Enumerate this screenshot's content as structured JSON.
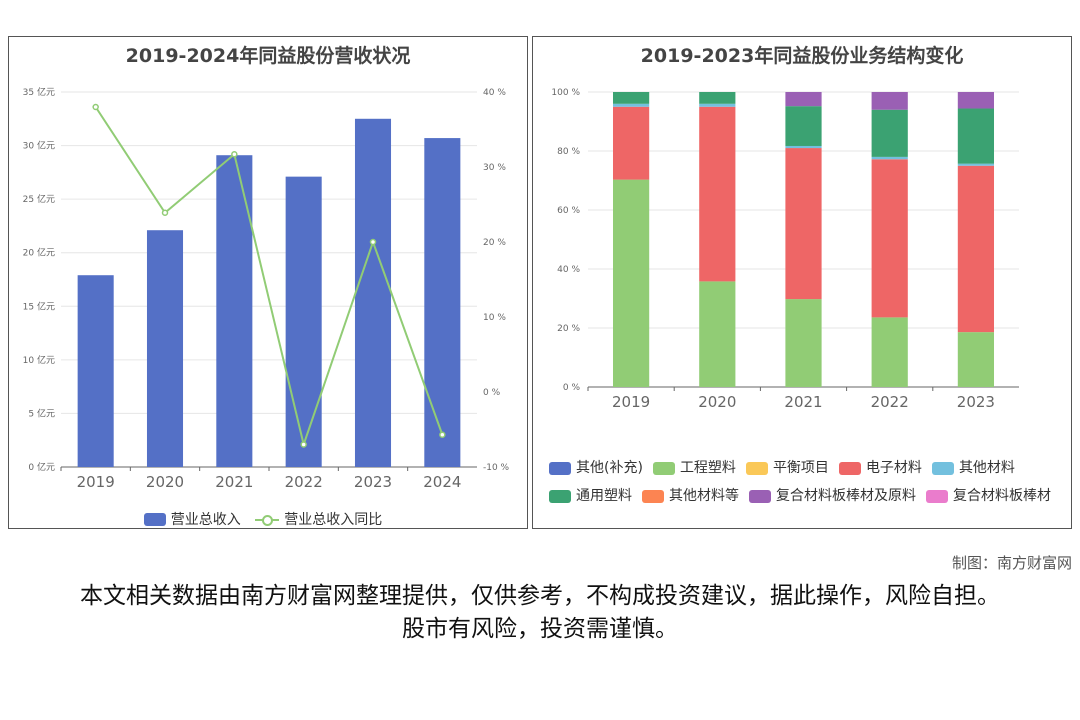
{
  "credit": "制图：南方财富网",
  "disclaimer": "本文相关数据由南方财富网整理提供，仅供参考，不构成投资建议，据此操作，风险自担。股市有风险，投资需谨慎。",
  "chart_data": [
    {
      "type": "bar",
      "title": "2019-2024年同益股份营收状况",
      "categories": [
        "2019",
        "2020",
        "2021",
        "2022",
        "2023",
        "2024"
      ],
      "series": [
        {
          "name": "营业总收入",
          "type": "bar",
          "axis": "left",
          "color": "#5470c6",
          "values": [
            17.9,
            22.1,
            29.1,
            27.1,
            32.5,
            30.7
          ]
        },
        {
          "name": "营业总收入同比",
          "type": "line",
          "axis": "right",
          "color": "#91cc75",
          "values": [
            38.0,
            23.9,
            31.7,
            -7.0,
            20.0,
            -5.7
          ]
        }
      ],
      "yleft": {
        "ticks": [
          "0 亿元",
          "5 亿元",
          "10 亿元",
          "15 亿元",
          "20 亿元",
          "25 亿元",
          "30 亿元",
          "35 亿元"
        ],
        "ylim": [
          0,
          35
        ]
      },
      "yright": {
        "ticks": [
          "-10 %",
          "0 %",
          "10 %",
          "20 %",
          "30 %",
          "40 %"
        ],
        "ylim": [
          -10,
          40
        ]
      },
      "legend_position": "bottom",
      "grid": true
    },
    {
      "type": "bar",
      "stacked": true,
      "title": "2019-2023年同益股份业务结构变化",
      "categories": [
        "2019",
        "2020",
        "2021",
        "2022",
        "2023"
      ],
      "ylim": [
        0,
        100
      ],
      "yticks": [
        "0 %",
        "20 %",
        "40 %",
        "60 %",
        "80 %",
        "100 %"
      ],
      "series": [
        {
          "name": "其他(补充)",
          "color": "#5470c6",
          "values": [
            0,
            0,
            0,
            0,
            0
          ]
        },
        {
          "name": "工程塑料",
          "color": "#91cc75",
          "values": [
            70.3,
            35.8,
            29.8,
            23.6,
            18.6
          ]
        },
        {
          "name": "平衡项目",
          "color": "#fac858",
          "values": [
            0,
            0,
            0,
            0,
            0
          ]
        },
        {
          "name": "电子材料",
          "color": "#ee6666",
          "values": [
            24.7,
            59.2,
            51.2,
            53.6,
            56.4
          ]
        },
        {
          "name": "其他材料",
          "color": "#73c0de",
          "values": [
            1.0,
            1.0,
            0.7,
            0.8,
            0.7
          ]
        },
        {
          "name": "通用塑料",
          "color": "#3ba272",
          "values": [
            4.0,
            4.0,
            13.5,
            16.0,
            18.7
          ]
        },
        {
          "name": "其他材料等",
          "color": "#fc8452",
          "values": [
            0,
            0,
            0,
            0,
            0
          ]
        },
        {
          "name": "复合材料板棒材及原料",
          "color": "#9a60b4",
          "values": [
            0,
            0,
            4.8,
            6.0,
            5.6
          ]
        },
        {
          "name": "复合材料板棒材",
          "color": "#ea7ccc",
          "values": [
            0,
            0,
            0,
            0,
            0
          ]
        }
      ],
      "legend_position": "bottom",
      "grid": true
    }
  ]
}
